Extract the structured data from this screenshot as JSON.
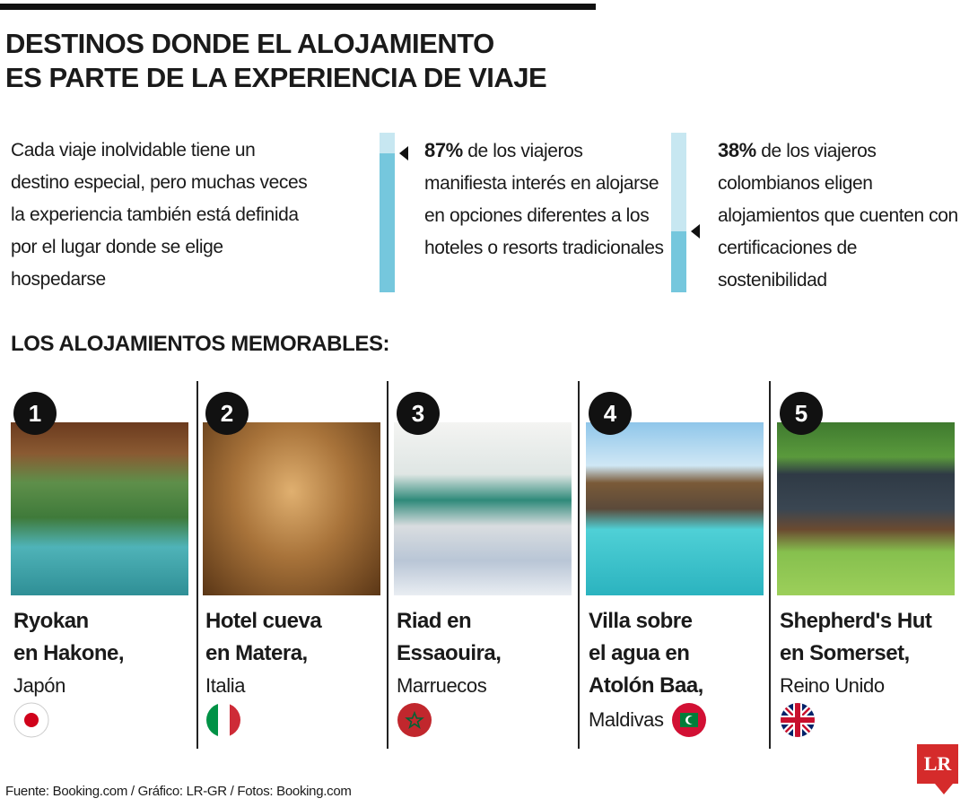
{
  "header": {
    "title_lines": [
      "DESTINOS DONDE EL ALOJAMIENTO",
      "ES PARTE DE LA EXPERIENCIA DE VIAJE"
    ]
  },
  "intro": "Cada viaje inolvidable tiene un destino especial, pero muchas veces la experiencia también está definida por el lugar donde se elige hospedarse",
  "stats": [
    {
      "value": 87,
      "label": "87%",
      "text": "de los viajeros manifiesta interés en alojarse en opciones diferentes a los hoteles o resorts tradicionales"
    },
    {
      "value": 38,
      "label": "38%",
      "text": "de los viajeros colombianos eligen alojamientos que cuenten con certificaciones de sostenibilidad"
    }
  ],
  "section_title": "LOS ALOJAMIENTOS MEMORABLES:",
  "items": [
    {
      "number": "1",
      "name_lines": [
        "Ryokan",
        "en Hakone,"
      ],
      "country": "Japón"
    },
    {
      "number": "2",
      "name_lines": [
        "Hotel cueva",
        "en Matera,"
      ],
      "country": "Italia"
    },
    {
      "number": "3",
      "name_lines": [
        "Riad en",
        "Essaouira,"
      ],
      "country": "Marruecos"
    },
    {
      "number": "4",
      "name_lines": [
        "Villa sobre",
        "el agua en",
        "Atolón Baa,"
      ],
      "country": "Maldivas"
    },
    {
      "number": "5",
      "name_lines": [
        "Shepherd's Hut",
        "en Somerset,"
      ],
      "country": "Reino Unido"
    }
  ],
  "footer": {
    "source": "Fuente: Booking.com / Gráfico: LR-GR / Fotos: Booking.com",
    "logo": "LR"
  }
}
